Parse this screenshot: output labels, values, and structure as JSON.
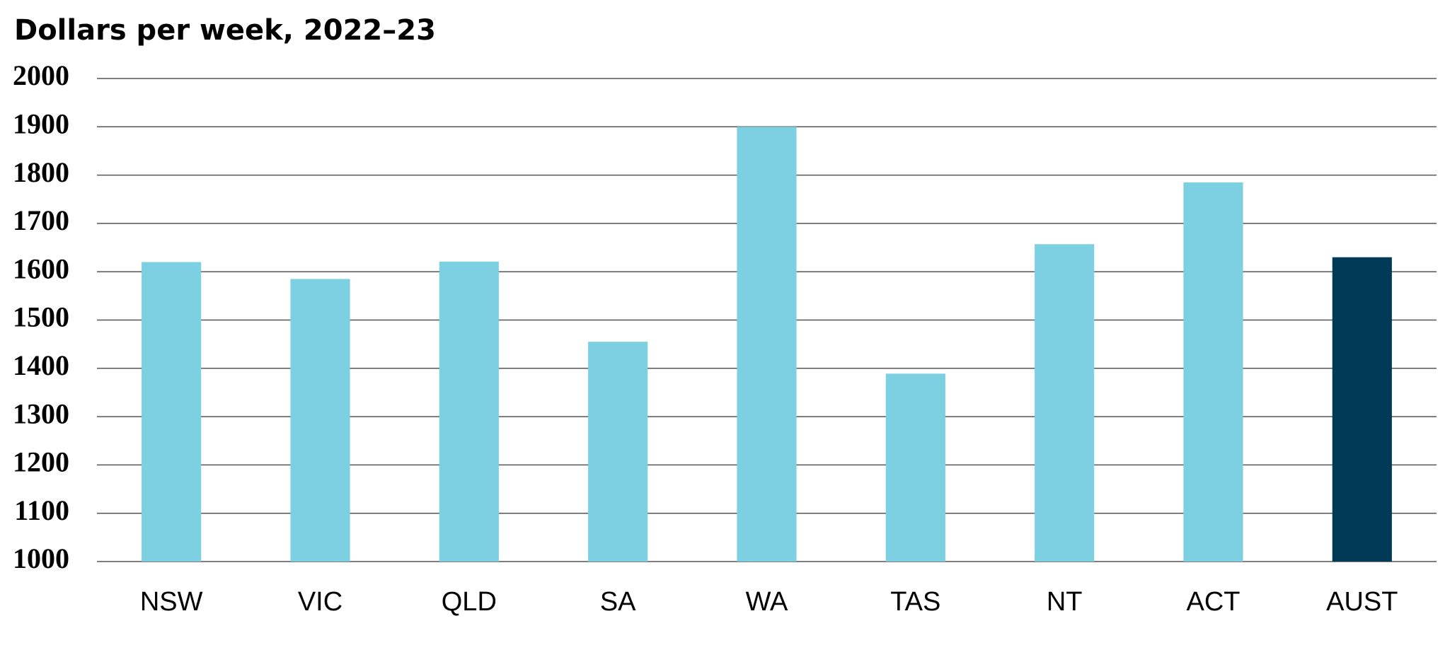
{
  "chart_data": {
    "type": "bar",
    "title": "Dollars per week, 2022–23",
    "categories": [
      "NSW",
      "VIC",
      "QLD",
      "SA",
      "WA",
      "TAS",
      "NT",
      "ACT",
      "AUST"
    ],
    "values": [
      1620,
      1585,
      1621,
      1455,
      1900,
      1389,
      1657,
      1785,
      1630
    ],
    "colors": [
      "#7dd0e1",
      "#7dd0e1",
      "#7dd0e1",
      "#7dd0e1",
      "#7dd0e1",
      "#7dd0e1",
      "#7dd0e1",
      "#7dd0e1",
      "#003a57"
    ],
    "ylim": [
      1000,
      2000
    ],
    "yticks": [
      1000,
      1100,
      1200,
      1300,
      1400,
      1500,
      1600,
      1700,
      1800,
      1900,
      2000
    ],
    "grid": true
  }
}
